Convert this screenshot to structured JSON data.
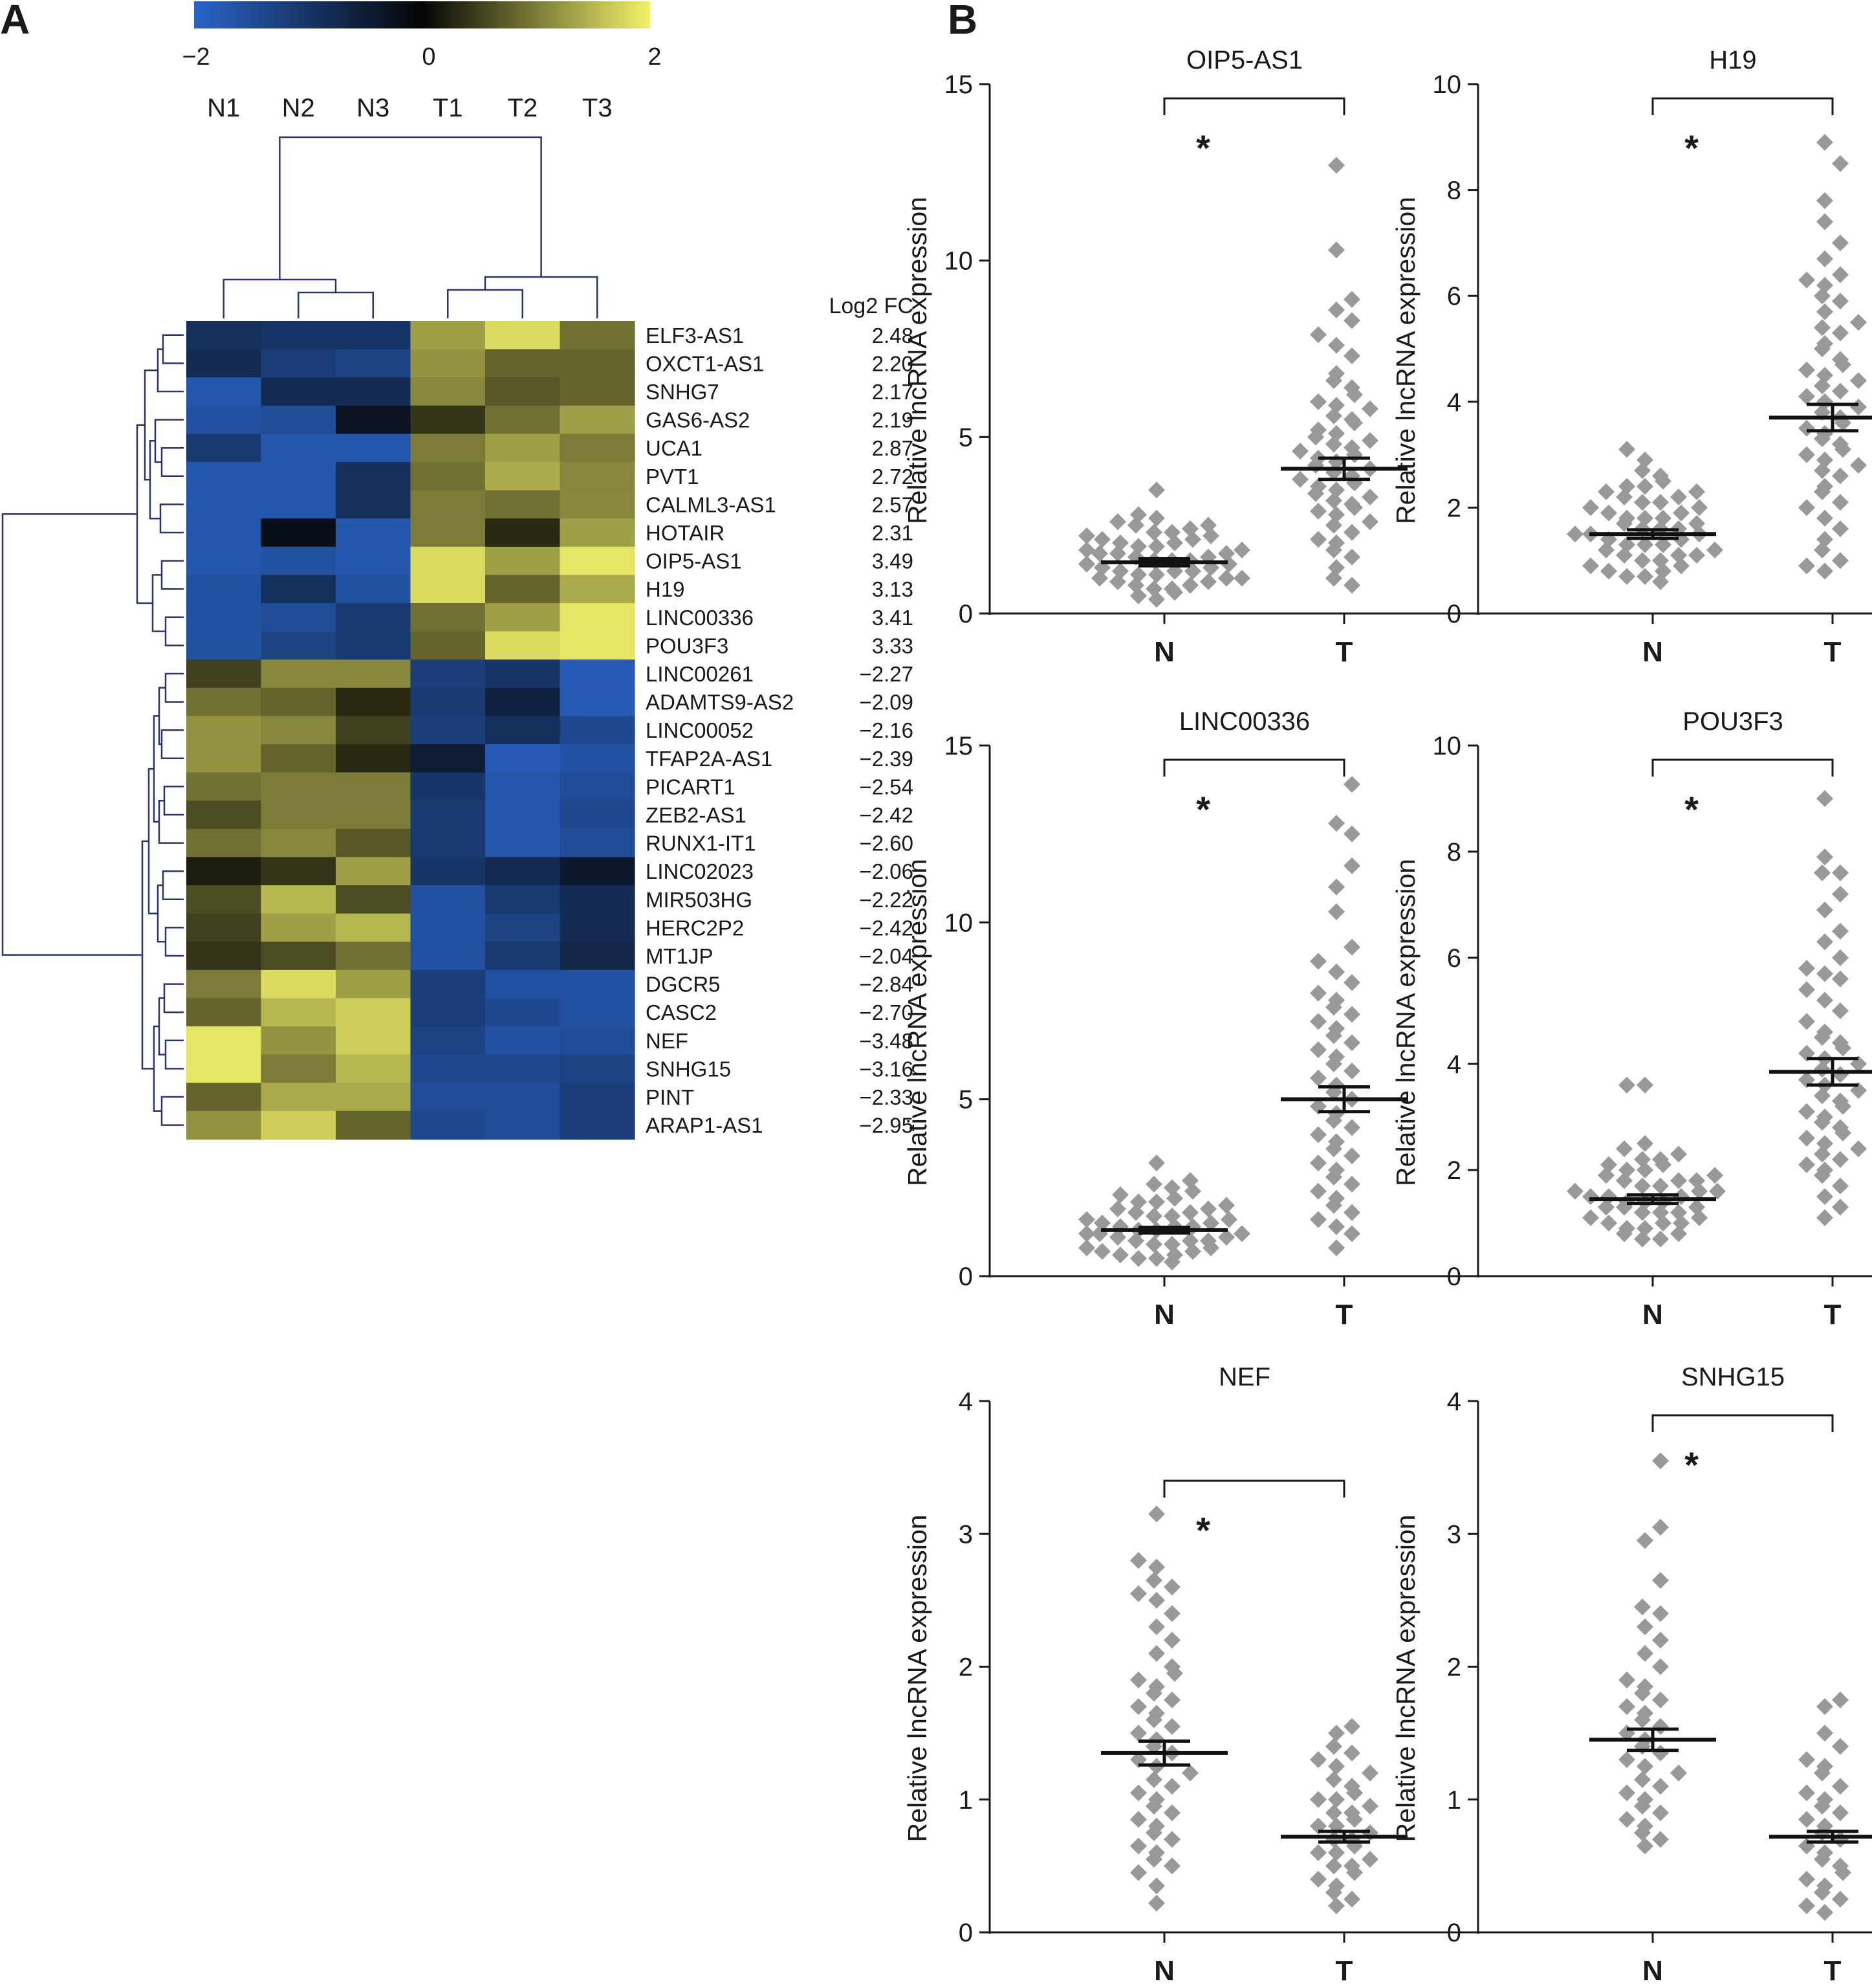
{
  "panels": {
    "a_label": "A",
    "b_label": "B"
  },
  "heatmap": {
    "colorbar": {
      "ticks": [
        "−2",
        "0",
        "2"
      ],
      "low_color": "#2a64c9",
      "mid_color": "#050505",
      "high_color": "#f2f26a"
    },
    "samples": [
      "N1",
      "N2",
      "N3",
      "T1",
      "T2",
      "T3"
    ],
    "fc_header": "Log2 FC",
    "rows": [
      {
        "gene": "ELF3-AS1",
        "fc": "2.48"
      },
      {
        "gene": "OXCT1-AS1",
        "fc": "2.20"
      },
      {
        "gene": "SNHG7",
        "fc": "2.17"
      },
      {
        "gene": "GAS6-AS2",
        "fc": "2.19"
      },
      {
        "gene": "UCA1",
        "fc": "2.87"
      },
      {
        "gene": "PVT1",
        "fc": "2.72"
      },
      {
        "gene": "CALML3-AS1",
        "fc": "2.57"
      },
      {
        "gene": "HOTAIR",
        "fc": "2.31"
      },
      {
        "gene": "OIP5-AS1",
        "fc": "3.49"
      },
      {
        "gene": "H19",
        "fc": "3.13"
      },
      {
        "gene": "LINC00336",
        "fc": "3.41"
      },
      {
        "gene": "POU3F3",
        "fc": "3.33"
      },
      {
        "gene": "LINC00261",
        "fc": "−2.27"
      },
      {
        "gene": "ADAMTS9-AS2",
        "fc": "−2.09"
      },
      {
        "gene": "LINC00052",
        "fc": "−2.16"
      },
      {
        "gene": "TFAP2A-AS1",
        "fc": "−2.39"
      },
      {
        "gene": "PICART1",
        "fc": "−2.54"
      },
      {
        "gene": "ZEB2-AS1",
        "fc": "−2.42"
      },
      {
        "gene": "RUNX1-IT1",
        "fc": "−2.60"
      },
      {
        "gene": "LINC02023",
        "fc": "−2.06"
      },
      {
        "gene": "MIR503HG",
        "fc": "−2.22"
      },
      {
        "gene": "HERC2P2",
        "fc": "−2.42"
      },
      {
        "gene": "MT1JP",
        "fc": "−2.04"
      },
      {
        "gene": "DGCR5",
        "fc": "−2.84"
      },
      {
        "gene": "CASC2",
        "fc": "−2.70"
      },
      {
        "gene": "NEF",
        "fc": "−3.48"
      },
      {
        "gene": "SNHG15",
        "fc": "−3.16"
      },
      {
        "gene": "PINT",
        "fc": "−2.33"
      },
      {
        "gene": "ARAP1-AS1",
        "fc": "−2.95"
      }
    ]
  },
  "chart_data": [
    {
      "type": "heatmap",
      "x": [
        "N1",
        "N2",
        "N3",
        "T1",
        "T2",
        "T3"
      ],
      "y": [
        "ELF3-AS1",
        "OXCT1-AS1",
        "SNHG7",
        "GAS6-AS2",
        "UCA1",
        "PVT1",
        "CALML3-AS1",
        "HOTAIR",
        "OIP5-AS1",
        "H19",
        "LINC00336",
        "POU3F3",
        "LINC00261",
        "ADAMTS9-AS2",
        "LINC00052",
        "TFAP2A-AS1",
        "PICART1",
        "ZEB2-AS1",
        "RUNX1-IT1",
        "LINC02023",
        "MIR503HG",
        "HERC2P2",
        "MT1JP",
        "DGCR5",
        "CASC2",
        "NEF",
        "SNHG15",
        "PINT",
        "ARAP1-AS1"
      ],
      "z": [
        [
          -0.9,
          -1.0,
          -1.0,
          1.3,
          1.8,
          0.9
        ],
        [
          -0.8,
          -1.2,
          -1.3,
          1.2,
          0.8,
          0.8
        ],
        [
          -1.7,
          -0.8,
          -0.8,
          1.1,
          0.7,
          0.8
        ],
        [
          -1.6,
          -1.5,
          -0.3,
          0.4,
          0.9,
          1.3
        ],
        [
          -1.1,
          -1.7,
          -1.7,
          1.0,
          1.3,
          1.0
        ],
        [
          -1.7,
          -1.7,
          -0.9,
          0.9,
          1.4,
          1.1
        ],
        [
          -1.7,
          -1.7,
          -0.9,
          1.0,
          0.9,
          1.1
        ],
        [
          -1.7,
          -0.2,
          -1.7,
          1.0,
          0.3,
          1.3
        ],
        [
          -1.7,
          -1.6,
          -1.7,
          1.8,
          1.3,
          1.9
        ],
        [
          -1.6,
          -0.9,
          -1.6,
          1.8,
          0.8,
          1.4
        ],
        [
          -1.6,
          -1.5,
          -1.1,
          0.9,
          1.3,
          1.9
        ],
        [
          -1.6,
          -1.3,
          -1.1,
          0.8,
          1.8,
          1.9
        ],
        [
          0.5,
          1.1,
          1.1,
          -1.2,
          -1.0,
          -1.8
        ],
        [
          0.9,
          0.8,
          0.3,
          -1.1,
          -0.6,
          -1.8
        ],
        [
          1.2,
          1.1,
          0.5,
          -1.2,
          -0.9,
          -1.4
        ],
        [
          1.2,
          0.8,
          0.3,
          -0.5,
          -1.8,
          -1.6
        ],
        [
          0.9,
          1.0,
          1.0,
          -1.0,
          -1.7,
          -1.5
        ],
        [
          0.6,
          1.0,
          1.0,
          -1.1,
          -1.7,
          -1.4
        ],
        [
          0.9,
          1.1,
          0.7,
          -1.1,
          -1.7,
          -1.5
        ],
        [
          0.2,
          0.4,
          1.3,
          -1.0,
          -0.8,
          -0.4
        ],
        [
          0.6,
          1.5,
          0.6,
          -1.6,
          -1.1,
          -0.8
        ],
        [
          0.5,
          1.3,
          1.5,
          -1.6,
          -1.3,
          -0.8
        ],
        [
          0.4,
          0.6,
          0.9,
          -1.6,
          -1.1,
          -0.7
        ],
        [
          1.0,
          1.8,
          1.3,
          -1.2,
          -1.6,
          -1.6
        ],
        [
          0.8,
          1.5,
          1.7,
          -1.2,
          -1.4,
          -1.6
        ],
        [
          1.9,
          1.2,
          1.7,
          -1.3,
          -1.6,
          -1.5
        ],
        [
          1.9,
          1.0,
          1.5,
          -1.4,
          -1.4,
          -1.3
        ],
        [
          0.8,
          1.4,
          1.4,
          -1.5,
          -1.5,
          -1.2
        ],
        [
          1.2,
          1.7,
          0.8,
          -1.4,
          -1.5,
          -1.2
        ]
      ],
      "zlim": [
        -2,
        2
      ],
      "colorbar_ticks": [
        "−2",
        "0",
        "2"
      ]
    },
    {
      "type": "scatter",
      "title": "OIP5-AS1",
      "ylabel": "Relative lncRNA expression",
      "categories": [
        "N",
        "T"
      ],
      "ylim": [
        0,
        15
      ],
      "yticks": [
        0,
        5,
        10,
        15
      ],
      "mean": [
        1.45,
        4.1
      ],
      "sem": [
        0.1,
        0.3
      ],
      "significance": "*",
      "points": [
        [
          0.4,
          0.5,
          0.6,
          0.7,
          0.7,
          0.8,
          0.8,
          0.9,
          0.9,
          1.0,
          1.0,
          1.0,
          1.1,
          1.1,
          1.2,
          1.2,
          1.2,
          1.3,
          1.3,
          1.4,
          1.4,
          1.4,
          1.5,
          1.5,
          1.5,
          1.6,
          1.6,
          1.7,
          1.7,
          1.7,
          1.8,
          1.8,
          1.9,
          1.9,
          2.0,
          2.0,
          2.1,
          2.1,
          2.2,
          2.2,
          2.3,
          2.3,
          2.4,
          2.5,
          2.5,
          2.6,
          2.7,
          2.8,
          3.5
        ],
        [
          0.8,
          1.0,
          1.3,
          1.6,
          1.8,
          2.0,
          2.1,
          2.3,
          2.5,
          2.6,
          2.8,
          2.9,
          3.0,
          3.1,
          3.2,
          3.3,
          3.4,
          3.5,
          3.6,
          3.7,
          3.8,
          3.9,
          4.0,
          4.1,
          4.2,
          4.3,
          4.4,
          4.5,
          4.6,
          4.7,
          4.8,
          4.9,
          5.0,
          5.1,
          5.2,
          5.4,
          5.5,
          5.6,
          5.8,
          5.9,
          6.0,
          6.2,
          6.4,
          6.6,
          6.8,
          7.3,
          7.6,
          7.9,
          8.3,
          8.6,
          8.9,
          10.3,
          12.7
        ]
      ]
    },
    {
      "type": "scatter",
      "title": "H19",
      "ylabel": "Relative lncRNA expression",
      "categories": [
        "N",
        "T"
      ],
      "ylim": [
        0,
        10
      ],
      "yticks": [
        0,
        2,
        4,
        6,
        8,
        10
      ],
      "mean": [
        1.5,
        3.7
      ],
      "sem": [
        0.08,
        0.25
      ],
      "significance": "*",
      "points": [
        [
          0.6,
          0.7,
          0.7,
          0.8,
          0.8,
          0.9,
          0.9,
          1.0,
          1.0,
          1.1,
          1.1,
          1.1,
          1.2,
          1.2,
          1.3,
          1.3,
          1.3,
          1.4,
          1.4,
          1.5,
          1.5,
          1.5,
          1.6,
          1.6,
          1.6,
          1.7,
          1.7,
          1.8,
          1.8,
          1.8,
          1.9,
          1.9,
          2.0,
          2.0,
          2.1,
          2.1,
          2.2,
          2.2,
          2.3,
          2.3,
          2.4,
          2.4,
          2.5,
          2.6,
          2.7,
          2.9,
          3.1
        ],
        [
          0.8,
          0.9,
          1.0,
          1.2,
          1.4,
          1.6,
          1.8,
          2.0,
          2.1,
          2.3,
          2.4,
          2.6,
          2.7,
          2.8,
          2.9,
          3.0,
          3.1,
          3.2,
          3.3,
          3.4,
          3.5,
          3.6,
          3.7,
          3.8,
          3.9,
          4.0,
          4.1,
          4.2,
          4.3,
          4.4,
          4.5,
          4.6,
          4.7,
          4.8,
          5.0,
          5.1,
          5.3,
          5.4,
          5.5,
          5.7,
          5.9,
          6.0,
          6.2,
          6.3,
          6.4,
          6.7,
          7.0,
          7.4,
          7.8,
          8.5,
          8.9
        ]
      ]
    },
    {
      "type": "scatter",
      "title": "LINC00336",
      "ylabel": "Relative lncRNA expression",
      "categories": [
        "N",
        "T"
      ],
      "ylim": [
        0,
        15
      ],
      "yticks": [
        0,
        5,
        10,
        15
      ],
      "mean": [
        1.3,
        5.0
      ],
      "sem": [
        0.08,
        0.35
      ],
      "significance": "*",
      "points": [
        [
          0.4,
          0.5,
          0.5,
          0.6,
          0.6,
          0.7,
          0.7,
          0.8,
          0.8,
          0.9,
          0.9,
          1.0,
          1.0,
          1.0,
          1.1,
          1.1,
          1.2,
          1.2,
          1.2,
          1.3,
          1.3,
          1.4,
          1.4,
          1.4,
          1.5,
          1.5,
          1.6,
          1.6,
          1.7,
          1.7,
          1.8,
          1.8,
          1.9,
          1.9,
          2.0,
          2.1,
          2.1,
          2.2,
          2.3,
          2.4,
          2.5,
          2.6,
          2.7,
          3.2
        ],
        [
          0.8,
          1.2,
          1.4,
          1.6,
          1.8,
          2.0,
          2.2,
          2.4,
          2.6,
          2.8,
          3.0,
          3.2,
          3.4,
          3.6,
          3.8,
          4.0,
          4.2,
          4.4,
          4.6,
          4.8,
          5.0,
          5.2,
          5.4,
          5.6,
          5.8,
          6.0,
          6.2,
          6.4,
          6.6,
          6.8,
          7.0,
          7.2,
          7.4,
          7.6,
          7.8,
          8.0,
          8.3,
          8.6,
          8.9,
          9.3,
          10.3,
          11.0,
          11.6,
          12.5,
          12.8,
          13.9
        ]
      ]
    },
    {
      "type": "scatter",
      "title": "POU3F3",
      "ylabel": "Relative lncRNA expression",
      "categories": [
        "N",
        "T"
      ],
      "ylim": [
        0,
        10
      ],
      "yticks": [
        0,
        2,
        4,
        6,
        8,
        10
      ],
      "mean": [
        1.45,
        3.85
      ],
      "sem": [
        0.08,
        0.25
      ],
      "significance": "*",
      "points": [
        [
          0.7,
          0.7,
          0.8,
          0.8,
          0.9,
          0.9,
          1.0,
          1.0,
          1.0,
          1.1,
          1.1,
          1.2,
          1.2,
          1.2,
          1.3,
          1.3,
          1.3,
          1.4,
          1.4,
          1.4,
          1.5,
          1.5,
          1.5,
          1.6,
          1.6,
          1.6,
          1.7,
          1.7,
          1.8,
          1.8,
          1.8,
          1.9,
          1.9,
          2.0,
          2.0,
          2.1,
          2.1,
          2.2,
          2.2,
          2.3,
          2.4,
          2.5,
          3.6,
          3.6
        ],
        [
          1.1,
          1.3,
          1.5,
          1.7,
          1.9,
          2.0,
          2.1,
          2.2,
          2.3,
          2.4,
          2.5,
          2.6,
          2.7,
          2.8,
          2.9,
          3.0,
          3.1,
          3.2,
          3.3,
          3.4,
          3.5,
          3.6,
          3.7,
          3.8,
          3.9,
          4.0,
          4.1,
          4.2,
          4.3,
          4.4,
          4.5,
          4.6,
          4.8,
          5.0,
          5.2,
          5.4,
          5.6,
          5.7,
          5.8,
          6.0,
          6.3,
          6.5,
          6.9,
          7.2,
          7.6,
          7.6,
          7.9,
          9.0
        ]
      ]
    },
    {
      "type": "scatter",
      "title": "NEF",
      "ylabel": "Relative lncRNA expression",
      "categories": [
        "N",
        "T"
      ],
      "ylim": [
        0,
        4
      ],
      "yticks": [
        0,
        1,
        2,
        3,
        4
      ],
      "mean": [
        1.35,
        0.72
      ],
      "sem": [
        0.09,
        0.04
      ],
      "significance": "*",
      "points": [
        [
          0.22,
          0.35,
          0.45,
          0.5,
          0.55,
          0.6,
          0.65,
          0.7,
          0.75,
          0.8,
          0.85,
          0.9,
          0.95,
          1.0,
          1.05,
          1.1,
          1.15,
          1.2,
          1.25,
          1.3,
          1.35,
          1.4,
          1.45,
          1.5,
          1.55,
          1.6,
          1.65,
          1.7,
          1.75,
          1.8,
          1.85,
          1.9,
          1.95,
          2.0,
          2.1,
          2.2,
          2.3,
          2.4,
          2.5,
          2.55,
          2.6,
          2.65,
          2.75,
          2.8,
          3.15
        ],
        [
          0.2,
          0.25,
          0.3,
          0.35,
          0.4,
          0.45,
          0.5,
          0.5,
          0.55,
          0.6,
          0.6,
          0.65,
          0.7,
          0.7,
          0.75,
          0.8,
          0.8,
          0.85,
          0.9,
          0.9,
          0.95,
          1.0,
          1.0,
          1.05,
          1.1,
          1.15,
          1.2,
          1.25,
          1.3,
          1.35,
          1.4,
          1.5,
          1.55
        ]
      ]
    },
    {
      "type": "scatter",
      "title": "SNHG15",
      "ylabel": "Relative lncRNA expression",
      "categories": [
        "N",
        "T"
      ],
      "ylim": [
        0,
        4
      ],
      "yticks": [
        0,
        1,
        2,
        3,
        4
      ],
      "mean": [
        1.45,
        0.72
      ],
      "sem": [
        0.08,
        0.04
      ],
      "significance": "*",
      "points": [
        [
          0.65,
          0.7,
          0.75,
          0.8,
          0.85,
          0.9,
          0.95,
          1.0,
          1.05,
          1.1,
          1.15,
          1.2,
          1.25,
          1.3,
          1.35,
          1.4,
          1.45,
          1.5,
          1.55,
          1.6,
          1.65,
          1.7,
          1.75,
          1.8,
          1.85,
          1.9,
          2.0,
          2.1,
          2.2,
          2.3,
          2.4,
          2.45,
          2.65,
          2.95,
          3.05,
          3.55
        ],
        [
          0.15,
          0.2,
          0.25,
          0.3,
          0.35,
          0.4,
          0.45,
          0.5,
          0.55,
          0.6,
          0.65,
          0.7,
          0.75,
          0.8,
          0.85,
          0.9,
          0.95,
          1.0,
          1.05,
          1.1,
          1.2,
          1.25,
          1.3,
          1.4,
          1.5,
          1.7,
          1.75
        ]
      ]
    }
  ]
}
